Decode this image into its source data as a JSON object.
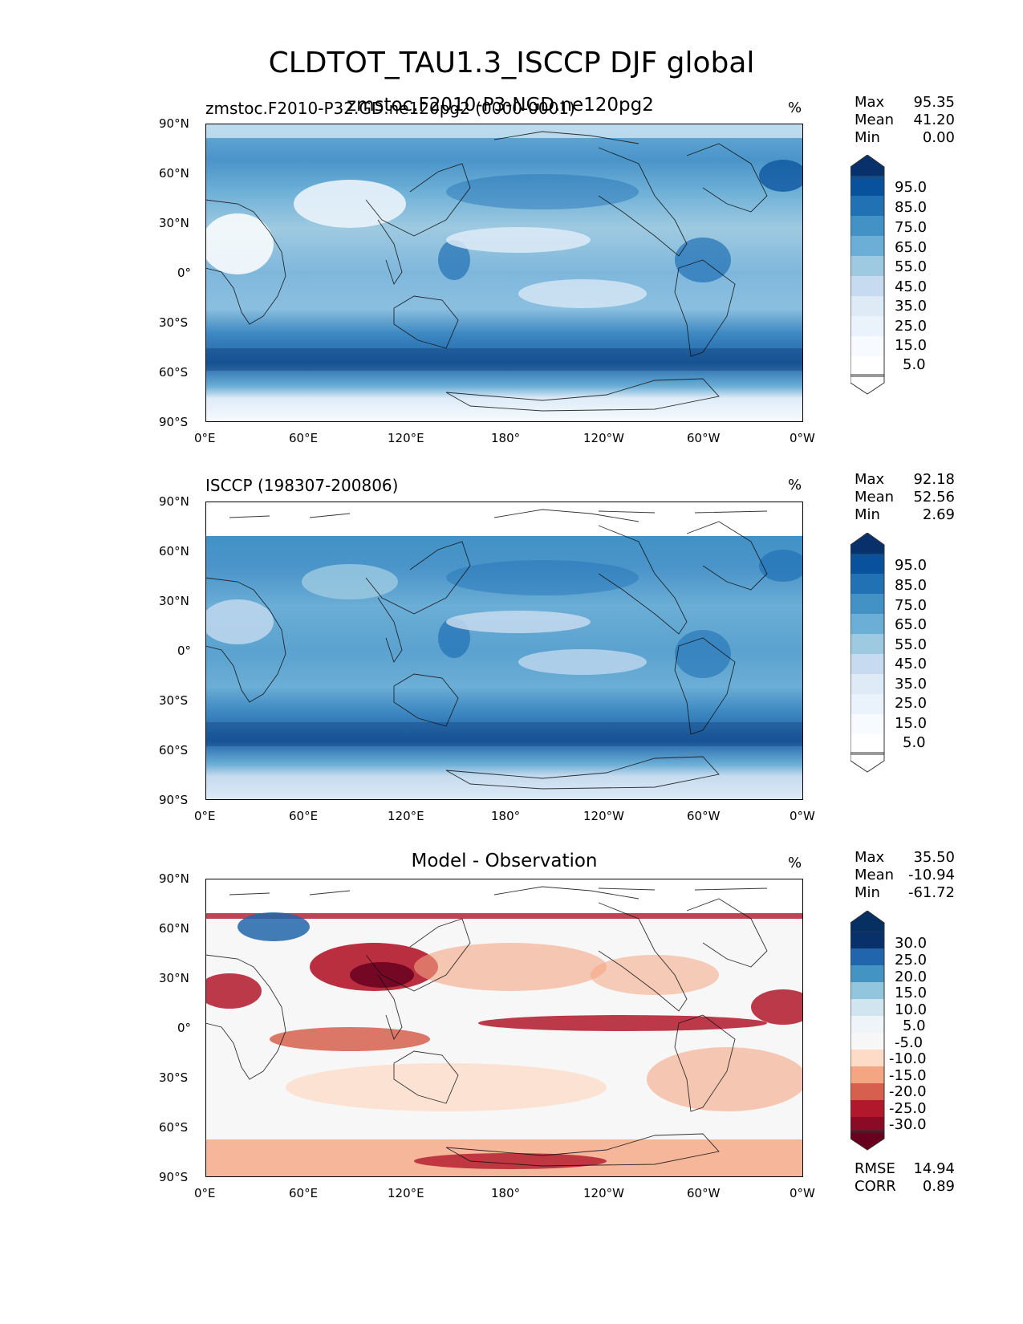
{
  "figure": {
    "title": "CLDTOT_TAU1.3_ISCCP DJF global"
  },
  "panels": [
    {
      "title_left": "zmstoc.F2010-P32.GD.ne120pg2 (0000-0001)",
      "title_overlap": "zmstoc.F2010-P3-NGD.ne120pg2",
      "title_center": "",
      "units": "%",
      "stats": {
        "max_label": "Max",
        "max": "95.35",
        "mean_label": "Mean",
        "mean": "41.20",
        "min_label": "Min",
        "min": "0.00"
      },
      "colorbar": {
        "labels": [
          "95.0",
          "85.0",
          "75.0",
          "65.0",
          "55.0",
          "45.0",
          "35.0",
          "25.0",
          "15.0",
          "5.0"
        ],
        "colors": [
          "#08306b",
          "#08519c",
          "#2171b5",
          "#4292c6",
          "#6baed6",
          "#9ecae1",
          "#c6dbef",
          "#deebf7",
          "#eaf3fb",
          "#f7fbff"
        ],
        "extend_colors": [
          "#08306b",
          "#ffffff"
        ]
      }
    },
    {
      "title_left": "ISCCP (198307-200806)",
      "title_overlap": "",
      "title_center": "",
      "units": "%",
      "stats": {
        "max_label": "Max",
        "max": "92.18",
        "mean_label": "Mean",
        "mean": "52.56",
        "min_label": "Min",
        "min": "2.69"
      },
      "colorbar": {
        "labels": [
          "95.0",
          "85.0",
          "75.0",
          "65.0",
          "55.0",
          "45.0",
          "35.0",
          "25.0",
          "15.0",
          "5.0"
        ],
        "colors": [
          "#08306b",
          "#08519c",
          "#2171b5",
          "#4292c6",
          "#6baed6",
          "#9ecae1",
          "#c6dbef",
          "#deebf7",
          "#eaf3fb",
          "#f7fbff"
        ],
        "extend_colors": [
          "#08306b",
          "#ffffff"
        ]
      }
    },
    {
      "title_left": "",
      "title_overlap": "",
      "title_center": "Model - Observation",
      "units": "%",
      "stats": {
        "max_label": "Max",
        "max": "35.50",
        "mean_label": "Mean",
        "mean": "-10.94",
        "min_label": "Min",
        "min": "-61.72"
      },
      "colorbar": {
        "labels": [
          "30.0",
          "25.0",
          "20.0",
          "15.0",
          "10.0",
          "5.0",
          "-5.0",
          "-10.0",
          "-15.0",
          "-20.0",
          "-25.0",
          "-30.0"
        ],
        "colors": [
          "#08306b",
          "#2166ac",
          "#4393c3",
          "#92c5de",
          "#d1e5f0",
          "#eef4f8",
          "#f7f7f7",
          "#fddbc7",
          "#f4a582",
          "#d6604d",
          "#b2182b",
          "#67001f"
        ],
        "extend_colors": [
          "#053061",
          "#67001f"
        ]
      },
      "metrics": {
        "rmse_label": "RMSE",
        "rmse": "14.94",
        "corr_label": "CORR",
        "corr": "0.89"
      }
    }
  ],
  "axes": {
    "xticks": [
      "0°E",
      "60°E",
      "120°E",
      "180°",
      "120°W",
      "60°W",
      "0°W"
    ],
    "yticks": [
      "90°N",
      "60°N",
      "30°N",
      "0°",
      "30°S",
      "60°S",
      "90°S"
    ]
  }
}
